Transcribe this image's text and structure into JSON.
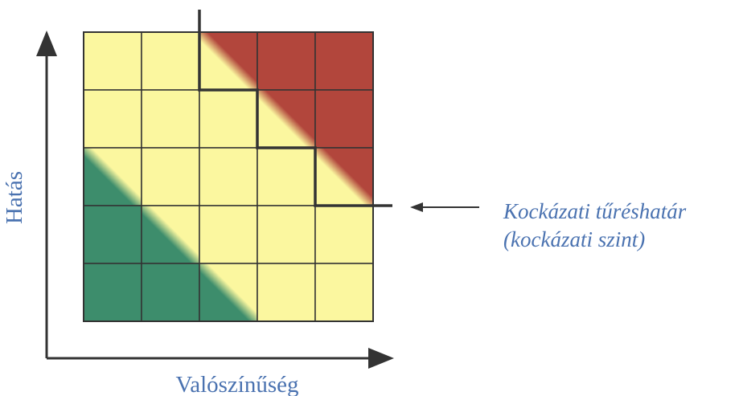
{
  "diagram": {
    "y_axis_label": "Hatás",
    "x_axis_label": "Valószínűség",
    "annotation_line1": "Kockázati tűréshatár",
    "annotation_line2": "(kockázati szint)"
  },
  "matrix": {
    "rows": 5,
    "cols": 5,
    "zones": [
      "low",
      "medium",
      "high"
    ],
    "colors": {
      "green": "#3d8d6c",
      "yellow": "#fbf79f",
      "red": "#b2463c",
      "line": "#333333",
      "text": "#4a72b0"
    }
  }
}
